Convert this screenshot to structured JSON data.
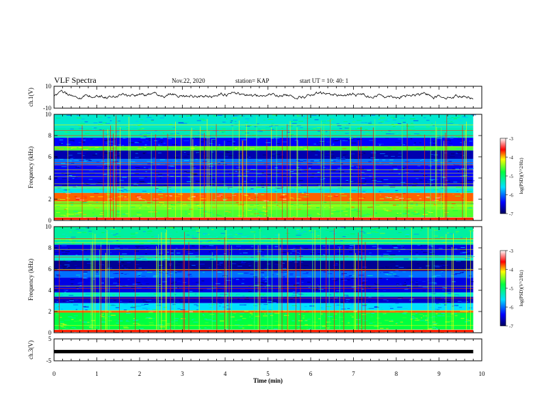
{
  "header": {
    "title": "VLF Spectra",
    "date": "Nov.22, 2020",
    "station": "station= KAP",
    "start": "start UT =  10: 40: 1"
  },
  "chart_data": [
    {
      "type": "line",
      "ylabel": "ch.1(V)",
      "ylim": [
        -10,
        10
      ],
      "yticks": [
        "10",
        "-10"
      ],
      "xlim": [
        0,
        10
      ],
      "note": "waveform trace, amplitude roughly -3 to 7 V over 0-9.8 min",
      "series": [
        {
          "values_range": [
            -3,
            7
          ],
          "x_end": 9.8
        }
      ]
    },
    {
      "type": "heatmap",
      "channel": "ch.1",
      "ylabel": "Frequency (kHz)",
      "ylim": [
        0,
        10
      ],
      "yticks": [
        "0",
        "2",
        "4",
        "6",
        "8",
        "10"
      ],
      "xlim": [
        0,
        10
      ],
      "x_end": 9.8,
      "colorbar": {
        "label": "log(PSD)(V^2/Hz)",
        "ticks": [
          "-3",
          "-4",
          "-5",
          "-6",
          "-7"
        ],
        "range": [
          -7,
          -3
        ]
      },
      "bands": [
        {
          "f": [
            0.0,
            0.3
          ],
          "level": -3.2
        },
        {
          "f": [
            0.3,
            1.0
          ],
          "level": -4.6
        },
        {
          "f": [
            1.0,
            1.8
          ],
          "level": -4.5
        },
        {
          "f": [
            1.8,
            2.6
          ],
          "level": -3.8
        },
        {
          "f": [
            2.6,
            3.2
          ],
          "level": -5.5
        },
        {
          "f": [
            3.2,
            3.9
          ],
          "level": -6.5
        },
        {
          "f": [
            3.9,
            5.2
          ],
          "level": -6.4
        },
        {
          "f": [
            5.2,
            5.8
          ],
          "level": -6.0
        },
        {
          "f": [
            5.8,
            6.6
          ],
          "level": -6.7
        },
        {
          "f": [
            6.6,
            7.0
          ],
          "level": -4.6
        },
        {
          "f": [
            7.0,
            7.8
          ],
          "level": -6.4
        },
        {
          "f": [
            7.8,
            8.8
          ],
          "level": -5.3
        },
        {
          "f": [
            8.8,
            10.0
          ],
          "level": -5.4
        }
      ]
    },
    {
      "type": "heatmap",
      "channel": "ch.2",
      "ylabel": "Frequency (kHz)",
      "ylim": [
        0,
        10
      ],
      "yticks": [
        "0",
        "2",
        "4",
        "6",
        "8",
        "10"
      ],
      "xlim": [
        0,
        10
      ],
      "x_end": 9.8,
      "colorbar": {
        "label": "log(PSD)(V^2/Hz)",
        "ticks": [
          "-3",
          "-4",
          "-5",
          "-6",
          "-7"
        ],
        "range": [
          -7,
          -3
        ]
      },
      "bands": [
        {
          "f": [
            0.0,
            0.3
          ],
          "level": -3.2
        },
        {
          "f": [
            0.3,
            1.9
          ],
          "level": -4.8
        },
        {
          "f": [
            1.9,
            2.1
          ],
          "level": -3.8
        },
        {
          "f": [
            2.1,
            2.8
          ],
          "level": -5.6
        },
        {
          "f": [
            2.8,
            3.4
          ],
          "level": -6.6
        },
        {
          "f": [
            3.4,
            3.8
          ],
          "level": -5.4
        },
        {
          "f": [
            3.8,
            5.2
          ],
          "level": -6.5
        },
        {
          "f": [
            5.2,
            5.8
          ],
          "level": -6.0
        },
        {
          "f": [
            5.8,
            6.8
          ],
          "level": -6.8
        },
        {
          "f": [
            6.8,
            7.3
          ],
          "level": -5.4
        },
        {
          "f": [
            7.3,
            8.3
          ],
          "level": -6.5
        },
        {
          "f": [
            8.3,
            10.0
          ],
          "level": -5.2
        }
      ]
    },
    {
      "type": "line",
      "ylabel": "ch.3(V)",
      "ylim": [
        -5,
        5
      ],
      "yticks": [
        "5",
        "-5"
      ],
      "xlim": [
        0,
        10
      ],
      "series": [
        {
          "value": -0.8,
          "x_end": 9.8
        }
      ]
    }
  ],
  "xaxis": {
    "label": "Time (min)",
    "ticks": [
      "0",
      "1",
      "2",
      "3",
      "4",
      "5",
      "6",
      "7",
      "8",
      "9",
      "10"
    ]
  }
}
